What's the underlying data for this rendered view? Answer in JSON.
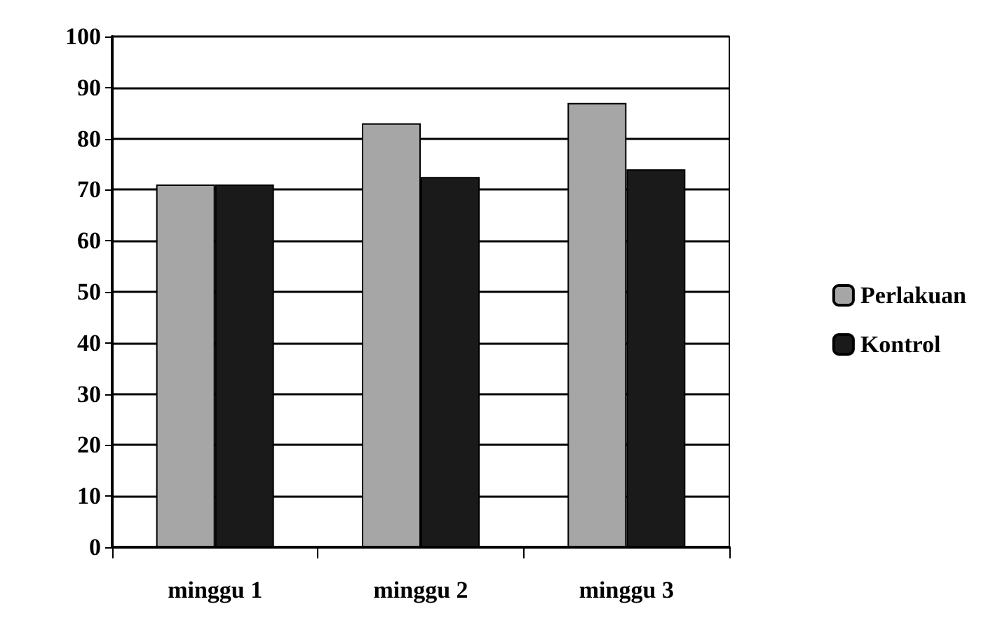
{
  "chart_data": {
    "type": "bar",
    "categories": [
      "minggu 1",
      "minggu 2",
      "minggu 3"
    ],
    "series": [
      {
        "name": "Perlakuan",
        "color": "#a6a6a6",
        "values": [
          71,
          83,
          87
        ]
      },
      {
        "name": "Kontrol",
        "color": "#1a1a1a",
        "values": [
          71,
          72.5,
          74
        ]
      }
    ],
    "ylim": [
      0,
      100
    ],
    "yticks": [
      0,
      10,
      20,
      30,
      40,
      50,
      60,
      70,
      80,
      90,
      100
    ],
    "grid": "y",
    "legend": "right"
  }
}
